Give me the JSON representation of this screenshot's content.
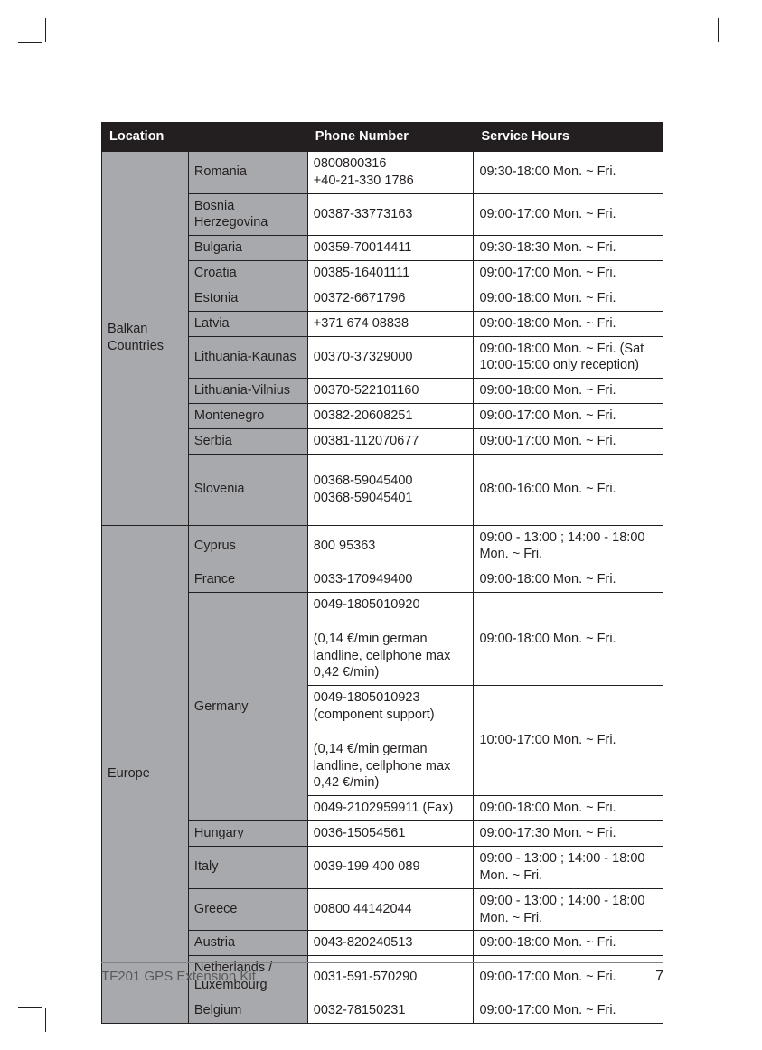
{
  "colors": {
    "header_bg": "#231f20",
    "header_fg": "#ffffff",
    "group_bg": "#a7a9ac",
    "border": "#231f20",
    "page_bg": "#ffffff",
    "footer_rule": "#808285",
    "footer_text": "#58595b"
  },
  "font": {
    "family": "Segoe UI, Arial, sans-serif",
    "body_size_pt": 11,
    "header_weight": 700
  },
  "headers": {
    "location": "Location",
    "phone": "Phone Number",
    "hours": "Service Hours"
  },
  "groups": [
    {
      "name": "Balkan Countries",
      "rows": [
        {
          "country": "Romania",
          "phone": "0800800316\n+40-21-330 1786",
          "hours": "09:30-18:00 Mon. ~ Fri."
        },
        {
          "country": "Bosnia Herzegovina",
          "phone": "00387-33773163",
          "hours": "09:00-17:00 Mon. ~ Fri."
        },
        {
          "country": "Bulgaria",
          "phone": "00359-70014411",
          "hours": "09:30-18:30 Mon. ~ Fri."
        },
        {
          "country": "Croatia",
          "phone": "00385-16401111",
          "hours": "09:00-17:00 Mon. ~ Fri."
        },
        {
          "country": "Estonia",
          "phone": "00372-6671796",
          "hours": "09:00-18:00 Mon. ~ Fri."
        },
        {
          "country": "Latvia",
          "phone": "+371 674 08838",
          "hours": "09:00-18:00 Mon. ~ Fri."
        },
        {
          "country": "Lithuania-Kaunas",
          "phone": "00370-37329000",
          "hours": "09:00-18:00 Mon. ~ Fri. (Sat 10:00-15:00 only reception)"
        },
        {
          "country": "Lithuania-Vilnius",
          "phone": "00370-522101160",
          "hours": "09:00-18:00 Mon. ~ Fri."
        },
        {
          "country": "Montenegro",
          "phone": "00382-20608251",
          "hours": "09:00-17:00 Mon. ~ Fri."
        },
        {
          "country": "Serbia",
          "phone": "00381-112070677",
          "hours": "09:00-17:00 Mon. ~ Fri."
        },
        {
          "country": "Slovenia",
          "phone": "00368-59045400\n00368-59045401",
          "hours": "08:00-16:00 Mon. ~ Fri.",
          "tall": true
        }
      ]
    },
    {
      "name": "Europe",
      "rows": [
        {
          "country": "Cyprus",
          "phone": "800 95363",
          "hours": "09:00 - 13:00 ; 14:00 - 18:00 Mon. ~ Fri."
        },
        {
          "country": "France",
          "phone": "0033-170949400",
          "hours": "09:00-18:00 Mon. ~ Fri."
        },
        {
          "country": "Germany",
          "span": 3,
          "sub": [
            {
              "phone": "0049-1805010920\n\n(0,14 €/min german landline, cellphone max 0,42 €/min)",
              "hours": "09:00-18:00 Mon. ~ Fri."
            },
            {
              "phone": "0049-1805010923 (component support)\n\n(0,14 €/min german landline, cellphone max 0,42 €/min)",
              "hours": "10:00-17:00 Mon. ~ Fri."
            },
            {
              "phone": "0049-2102959911 (Fax)",
              "hours": "09:00-18:00 Mon. ~ Fri."
            }
          ]
        },
        {
          "country": "Hungary",
          "phone": "0036-15054561",
          "hours": "09:00-17:30 Mon. ~ Fri."
        },
        {
          "country": "Italy",
          "phone": "0039-199 400 089",
          "hours": "09:00 - 13:00 ; 14:00 - 18:00 Mon. ~ Fri."
        },
        {
          "country": "Greece",
          "phone": "00800 44142044",
          "hours": "09:00 - 13:00 ; 14:00 - 18:00 Mon. ~ Fri."
        },
        {
          "country": "Austria",
          "phone": "0043-820240513",
          "hours": "09:00-18:00 Mon. ~ Fri."
        },
        {
          "country": "Netherlands / Luxembourg",
          "phone": "0031-591-570290",
          "hours": "09:00-17:00 Mon. ~ Fri."
        },
        {
          "country": "Belgium",
          "phone": "0032-78150231",
          "hours": "09:00-17:00 Mon. ~ Fri."
        }
      ]
    }
  ],
  "footer": {
    "title": "TF201 GPS Extension Kit",
    "page": "7"
  }
}
